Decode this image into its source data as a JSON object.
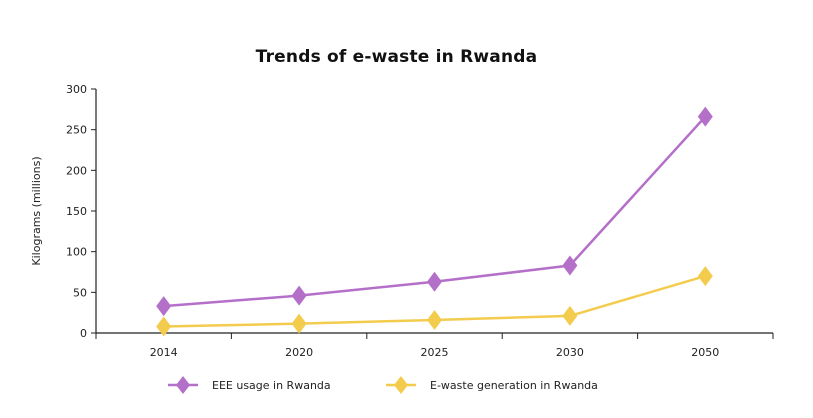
{
  "chart_data": {
    "type": "line",
    "title": "Trends of e-waste in Rwanda",
    "xlabel": "",
    "ylabel": "Kilograms (millions)",
    "categories": [
      "2014",
      "2020",
      "2025",
      "2030",
      "2050"
    ],
    "ylim": [
      0,
      300
    ],
    "yticks": [
      0,
      50,
      100,
      150,
      200,
      250,
      300
    ],
    "grid": false,
    "legend_position": "bottom",
    "series": [
      {
        "name": "EEE usage in Rwanda",
        "values": [
          33,
          46,
          63,
          83,
          266
        ],
        "color": "#B46FC9",
        "marker": "diamond"
      },
      {
        "name": "E-waste generation in Rwanda",
        "values": [
          8,
          11.5,
          16,
          21,
          70
        ],
        "color": "#F3CC4E",
        "marker": "diamond"
      }
    ]
  }
}
